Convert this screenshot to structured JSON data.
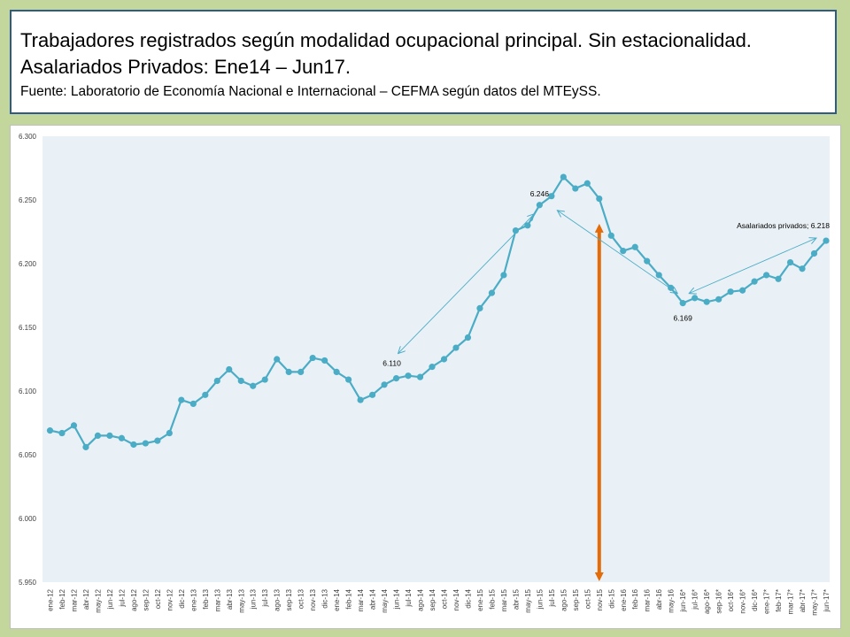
{
  "header": {
    "title_line1": "Trabajadores registrados según modalidad ocupacional principal. Sin estacionalidad.",
    "title_line2": "Asalariados Privados: Ene14 – Jun17.",
    "source": "Fuente: Laboratorio de Economía Nacional e Internacional – CEFMA según datos del MTEySS."
  },
  "colors": {
    "background": "#c3d69b",
    "header_border": "#2e5b8a",
    "plot_area": "#eaf1f6",
    "series": "#4bacc6",
    "vertical_marker": "#e36c09",
    "arrows": "#4bacc6"
  },
  "chart_data": {
    "type": "line",
    "title": "",
    "xlabel": "",
    "ylabel": "",
    "ylim": [
      5950,
      6300
    ],
    "yticks": [
      "5.950",
      "6.000",
      "6.050",
      "6.100",
      "6.150",
      "6.200",
      "6.250",
      "6.300"
    ],
    "grid": false,
    "legend": "none",
    "categories": [
      "ene-12",
      "feb-12",
      "mar-12",
      "abr-12",
      "may-12",
      "jun-12",
      "jul-12",
      "ago-12",
      "sep-12",
      "oct-12",
      "nov-12",
      "dic-12",
      "ene-13",
      "feb-13",
      "mar-13",
      "abr-13",
      "may-13",
      "jun-13",
      "jul-13",
      "ago-13",
      "sep-13",
      "oct-13",
      "nov-13",
      "dic-13",
      "ene-14",
      "feb-14",
      "mar-14",
      "abr-14",
      "may-14",
      "jun-14",
      "jul-14",
      "ago-14",
      "sep-14",
      "oct-14",
      "nov-14",
      "dic-14",
      "ene-15",
      "feb-15",
      "mar-15",
      "abr-15",
      "may-15",
      "jun-15",
      "jul-15",
      "ago-15",
      "sep-15",
      "oct-15",
      "nov-15",
      "dic-15",
      "ene-16",
      "feb-16",
      "mar-16",
      "abr-16",
      "may-16",
      "jun-16*",
      "jul-16*",
      "ago-16*",
      "sep-16*",
      "oct-16*",
      "nov-16*",
      "dic-16*",
      "ene-17*",
      "feb-17*",
      "mar-17*",
      "abr-17*",
      "may-17*",
      "jun-17*"
    ],
    "series": [
      {
        "name": "Asalariados privados",
        "values": [
          6069,
          6067,
          6073,
          6056,
          6065,
          6065,
          6063,
          6058,
          6059,
          6061,
          6067,
          6093,
          6090,
          6097,
          6108,
          6117,
          6108,
          6104,
          6109,
          6125,
          6115,
          6115,
          6126,
          6124,
          6115,
          6109,
          6093,
          6097,
          6105,
          6110,
          6112,
          6111,
          6119,
          6125,
          6134,
          6142,
          6165,
          6177,
          6191,
          6226,
          6230,
          6246,
          6253,
          6268,
          6259,
          6263,
          6251,
          6222,
          6210,
          6213,
          6202,
          6191,
          6181,
          6169,
          6173,
          6170,
          6172,
          6178,
          6179,
          6186,
          6191,
          6188,
          6201,
          6196,
          6208,
          6218
        ]
      }
    ],
    "annotations": [
      {
        "text": "6.110",
        "category": "jun-14",
        "value": 6110
      },
      {
        "text": "6.246",
        "category": "jun-15",
        "value": 6246
      },
      {
        "text": "6.169",
        "category": "jun-16*",
        "value": 6169
      },
      {
        "text": "Asalariados privados; 6.218",
        "category": "jun-17*",
        "value": 6218
      }
    ],
    "vertical_marker": {
      "category": "nov-15",
      "from": 5950,
      "to": 6232
    }
  }
}
